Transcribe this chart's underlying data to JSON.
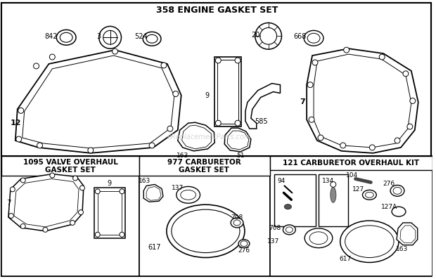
{
  "bg_color": "#ffffff",
  "watermark": "eReplacementParts.com",
  "top_title": "358 ENGINE GASKET SET",
  "valve_title": "1095 VALVE OVERHAUL\nGASKET SET",
  "carb977_title": "977 CARBURETOR\nGASKET SET",
  "carb121_title": "121 CARBURETOR OVERHAUL KIT"
}
